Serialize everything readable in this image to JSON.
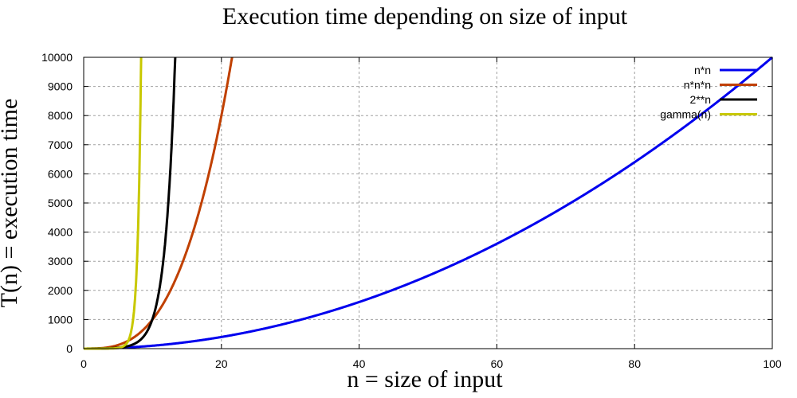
{
  "chart_data": {
    "type": "line",
    "title": "Execution time depending on size of input",
    "xlabel": "n = size of input",
    "ylabel": "T(n) = execution time",
    "xlim": [
      0,
      100
    ],
    "ylim": [
      0,
      10000
    ],
    "xticks": [
      0,
      20,
      40,
      60,
      80,
      100
    ],
    "yticks": [
      0,
      1000,
      2000,
      3000,
      4000,
      5000,
      6000,
      7000,
      8000,
      9000,
      10000
    ],
    "grid": true,
    "legend_position": "top-right",
    "series": [
      {
        "name": "n*n",
        "color": "#0000ee",
        "formula": "n^2",
        "x": [
          0,
          10,
          20,
          30,
          40,
          50,
          60,
          70,
          80,
          90,
          100
        ],
        "values": [
          0,
          100,
          400,
          900,
          1600,
          2500,
          3600,
          4900,
          6400,
          8100,
          10000
        ]
      },
      {
        "name": "n*n*n",
        "color": "#c04000",
        "formula": "n^3",
        "x": [
          0,
          5,
          10,
          12,
          14,
          16,
          18,
          20,
          21.5
        ],
        "values": [
          0,
          125,
          1000,
          1728,
          2744,
          4096,
          5832,
          8000,
          9938
        ]
      },
      {
        "name": "2**n",
        "color": "#000000",
        "formula": "2^n",
        "x": [
          0,
          5,
          8,
          10,
          11,
          12,
          13,
          13.3
        ],
        "values": [
          1,
          32,
          256,
          1024,
          2048,
          4096,
          8192,
          10000
        ]
      },
      {
        "name": "gamma(n)",
        "color": "#c8c800",
        "formula": "gamma(n)",
        "x": [
          0,
          5,
          6,
          7,
          7.5,
          8,
          8.2
        ],
        "values": [
          0,
          24,
          120,
          720,
          1871,
          5040,
          10000
        ]
      }
    ]
  }
}
